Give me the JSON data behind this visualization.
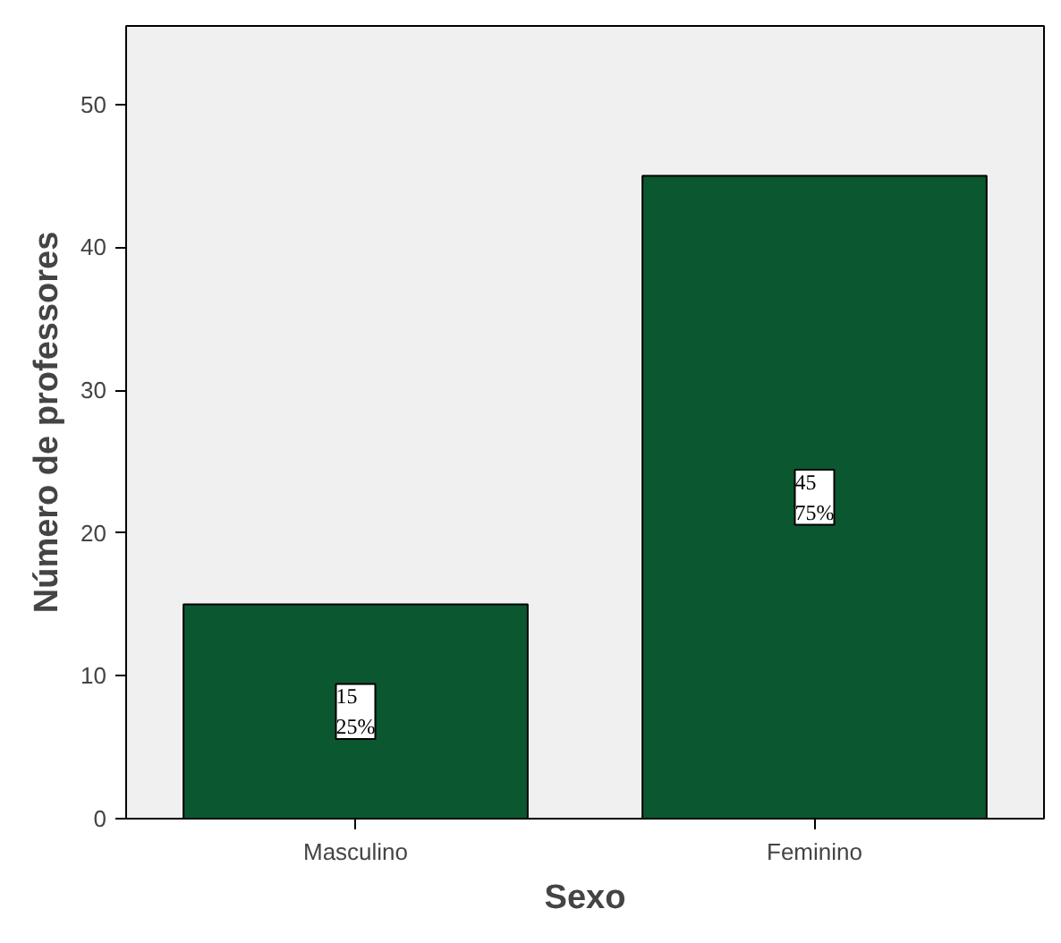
{
  "chart_data": {
    "type": "bar",
    "xlabel": "Sexo",
    "ylabel": "Número de professores",
    "categories": [
      "Masculino",
      "Feminino"
    ],
    "values": [
      15,
      45
    ],
    "value_labels": [
      "15\n25%",
      "45\n75%"
    ],
    "color": "#0b5730",
    "ylim": [
      0,
      55.5
    ],
    "yticks": [
      0,
      10,
      20,
      30,
      40,
      50
    ],
    "grid": false
  }
}
